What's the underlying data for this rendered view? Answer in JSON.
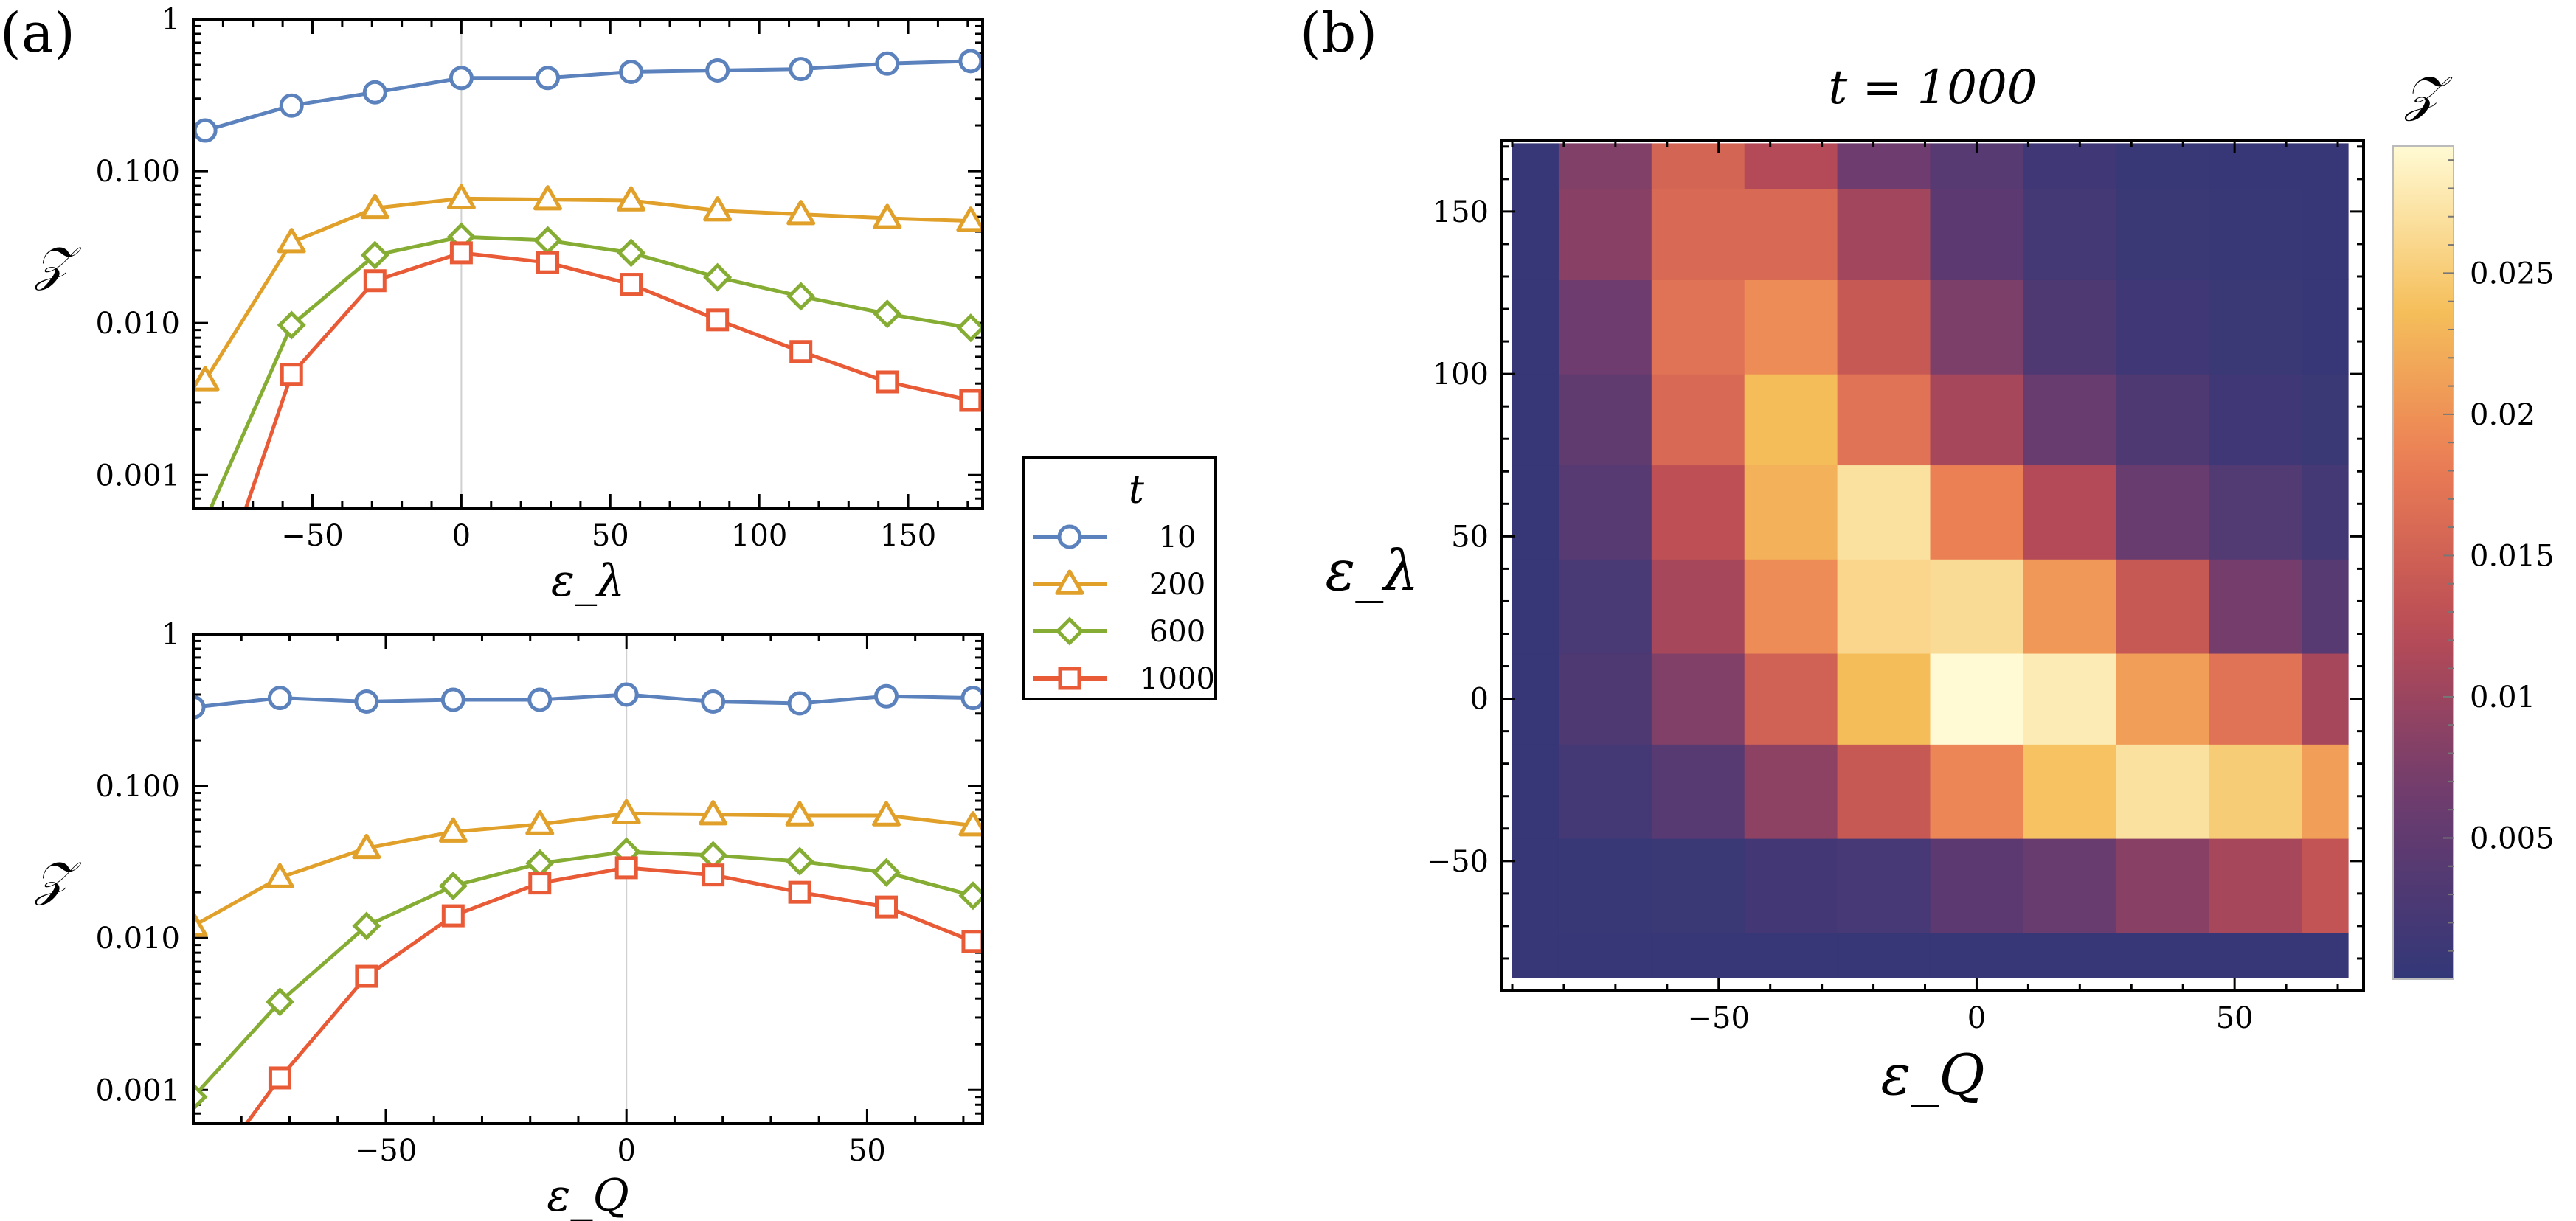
{
  "panel_labels": {
    "a": "(a)",
    "b": "(b)"
  },
  "legend": {
    "title": "t",
    "entries": [
      {
        "label": "10",
        "color": "#5b82bd",
        "marker": "circle"
      },
      {
        "label": "200",
        "color": "#e1a02a",
        "marker": "triangle"
      },
      {
        "label": "600",
        "color": "#86ad33",
        "marker": "diamond"
      },
      {
        "label": "1000",
        "color": "#e95b37",
        "marker": "square"
      }
    ]
  },
  "chart_data": [
    {
      "type": "line",
      "panel": "(a) top",
      "xlabel": "ε_λ",
      "ylabel": "𝒵",
      "yscale": "log",
      "xlim": [
        -90,
        175
      ],
      "ylim": [
        0.0006,
        1
      ],
      "xticks": [
        -50,
        0,
        50,
        100,
        150
      ],
      "xtick_labels": [
        "−50",
        "0",
        "50",
        "100",
        "150"
      ],
      "yticks": [
        0.001,
        0.01,
        0.1,
        1
      ],
      "ytick_labels": [
        "0.001",
        "0.010",
        "0.100",
        "1"
      ],
      "vline_x": 0,
      "x": [
        -86,
        -57,
        -29,
        0,
        29,
        57,
        86,
        114,
        143,
        171
      ],
      "series": [
        {
          "name": "10",
          "values": [
            0.185,
            0.27,
            0.33,
            0.41,
            0.41,
            0.45,
            0.46,
            0.47,
            0.51,
            0.53
          ]
        },
        {
          "name": "200",
          "values": [
            0.0042,
            0.034,
            0.057,
            0.066,
            0.065,
            0.064,
            0.055,
            0.052,
            0.049,
            0.047
          ]
        },
        {
          "name": "600",
          "values": [
            0.0005,
            0.0097,
            0.028,
            0.037,
            0.035,
            0.029,
            0.02,
            0.015,
            0.0115,
            0.0093
          ]
        },
        {
          "name": "1000",
          "values": [
            0.0001,
            0.0046,
            0.019,
            0.029,
            0.025,
            0.018,
            0.0105,
            0.0065,
            0.0041,
            0.0031
          ]
        }
      ]
    },
    {
      "type": "line",
      "panel": "(a) bottom",
      "xlabel": "ε_Q",
      "ylabel": "𝒵",
      "yscale": "log",
      "xlim": [
        -90,
        74
      ],
      "ylim": [
        0.0006,
        1
      ],
      "xticks": [
        -50,
        0,
        50
      ],
      "xtick_labels": [
        "−50",
        "0",
        "50"
      ],
      "yticks": [
        0.001,
        0.01,
        0.1,
        1
      ],
      "ytick_labels": [
        "0.001",
        "0.010",
        "0.100",
        "1"
      ],
      "vline_x": 0,
      "x": [
        -90,
        -72,
        -54,
        -36,
        -18,
        0,
        18,
        36,
        54,
        72
      ],
      "series": [
        {
          "name": "10",
          "values": [
            0.33,
            0.38,
            0.36,
            0.37,
            0.37,
            0.4,
            0.36,
            0.35,
            0.39,
            0.38
          ]
        },
        {
          "name": "200",
          "values": [
            0.012,
            0.025,
            0.039,
            0.05,
            0.056,
            0.066,
            0.065,
            0.064,
            0.064,
            0.055
          ]
        },
        {
          "name": "600",
          "values": [
            0.0009,
            0.0038,
            0.012,
            0.022,
            0.031,
            0.037,
            0.035,
            0.032,
            0.027,
            0.019
          ]
        },
        {
          "name": "1000",
          "values": [
            0.0002,
            0.0012,
            0.0056,
            0.014,
            0.023,
            0.029,
            0.026,
            0.02,
            0.016,
            0.0095
          ]
        }
      ]
    },
    {
      "type": "heatmap",
      "panel": "(b)",
      "title": "t = 1000",
      "xlabel": "ε_Q",
      "ylabel": "ε_λ",
      "colorbar_label": "𝒵",
      "xlim": [
        -92,
        75
      ],
      "ylim": [
        -90,
        172
      ],
      "xticks": [
        -50,
        0,
        50
      ],
      "xtick_labels": [
        "−50",
        "0",
        "50"
      ],
      "yticks": [
        -50,
        0,
        50,
        100,
        150
      ],
      "ytick_labels": [
        "−50",
        "0",
        "50",
        "100",
        "150"
      ],
      "colorbar_ticks": [
        0.005,
        0.01,
        0.015,
        0.02,
        0.025
      ],
      "colorbar_tick_labels": [
        "0.005",
        "0.01",
        "0.015",
        "0.02",
        "0.025"
      ],
      "colorbar_range": [
        0.0,
        0.0295
      ],
      "x_edges": [
        -90,
        -81,
        -63,
        -45,
        -27,
        -9,
        9,
        27,
        45,
        63,
        72
      ],
      "y_edges": [
        -86,
        -72,
        -43,
        -14,
        14,
        43,
        72,
        100,
        129,
        157,
        171
      ],
      "values": [
        [
          0.0005,
          0.0005,
          0.0005,
          0.0005,
          0.0005,
          0.0005,
          0.0005,
          0.0005,
          0.0005,
          0.0005
        ],
        [
          0.0005,
          0.0008,
          0.001,
          0.0018,
          0.0022,
          0.0045,
          0.006,
          0.0085,
          0.011,
          0.0135
        ],
        [
          0.0005,
          0.002,
          0.004,
          0.009,
          0.014,
          0.019,
          0.024,
          0.027,
          0.025,
          0.021
        ],
        [
          0.0005,
          0.003,
          0.008,
          0.015,
          0.0235,
          0.0295,
          0.028,
          0.021,
          0.017,
          0.011
        ],
        [
          0.0005,
          0.0025,
          0.011,
          0.0195,
          0.026,
          0.0265,
          0.0205,
          0.014,
          0.007,
          0.004
        ],
        [
          0.0005,
          0.004,
          0.013,
          0.0225,
          0.027,
          0.0185,
          0.012,
          0.006,
          0.0035,
          0.002
        ],
        [
          0.0005,
          0.005,
          0.016,
          0.0235,
          0.017,
          0.011,
          0.006,
          0.003,
          0.0015,
          0.001
        ],
        [
          0.0005,
          0.0065,
          0.017,
          0.0195,
          0.014,
          0.0075,
          0.003,
          0.0015,
          0.001,
          0.0005
        ],
        [
          0.0005,
          0.0085,
          0.016,
          0.016,
          0.0105,
          0.0045,
          0.002,
          0.001,
          0.0008,
          0.0005
        ],
        [
          0.0005,
          0.008,
          0.0155,
          0.012,
          0.0065,
          0.004,
          0.0015,
          0.0008,
          0.0005,
          0.0005
        ]
      ]
    }
  ]
}
